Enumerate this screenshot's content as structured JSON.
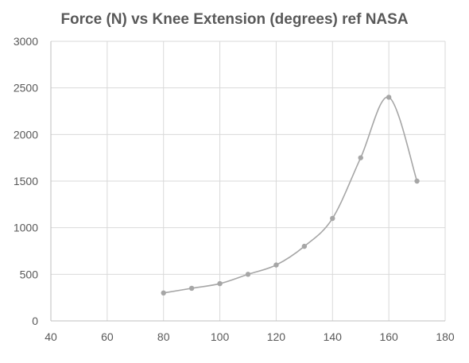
{
  "chart_data": {
    "type": "scatter",
    "title": "Force (N) vs Knee Extension (degrees) ref NASA",
    "xlabel": "",
    "ylabel": "",
    "xlim": [
      40,
      180
    ],
    "ylim": [
      0,
      3000
    ],
    "xticks": [
      40,
      60,
      80,
      100,
      120,
      140,
      160,
      180
    ],
    "yticks": [
      0,
      500,
      1000,
      1500,
      2000,
      2500,
      3000
    ],
    "grid": {
      "x": true,
      "y": true
    },
    "smooth": true,
    "legend": "none",
    "series": [
      {
        "color": "#a6a6a6",
        "x": [
          80,
          90,
          100,
          110,
          120,
          130,
          140,
          150,
          160,
          170
        ],
        "y": [
          300,
          350,
          400,
          500,
          600,
          800,
          1100,
          1750,
          2400,
          1500
        ]
      }
    ]
  }
}
